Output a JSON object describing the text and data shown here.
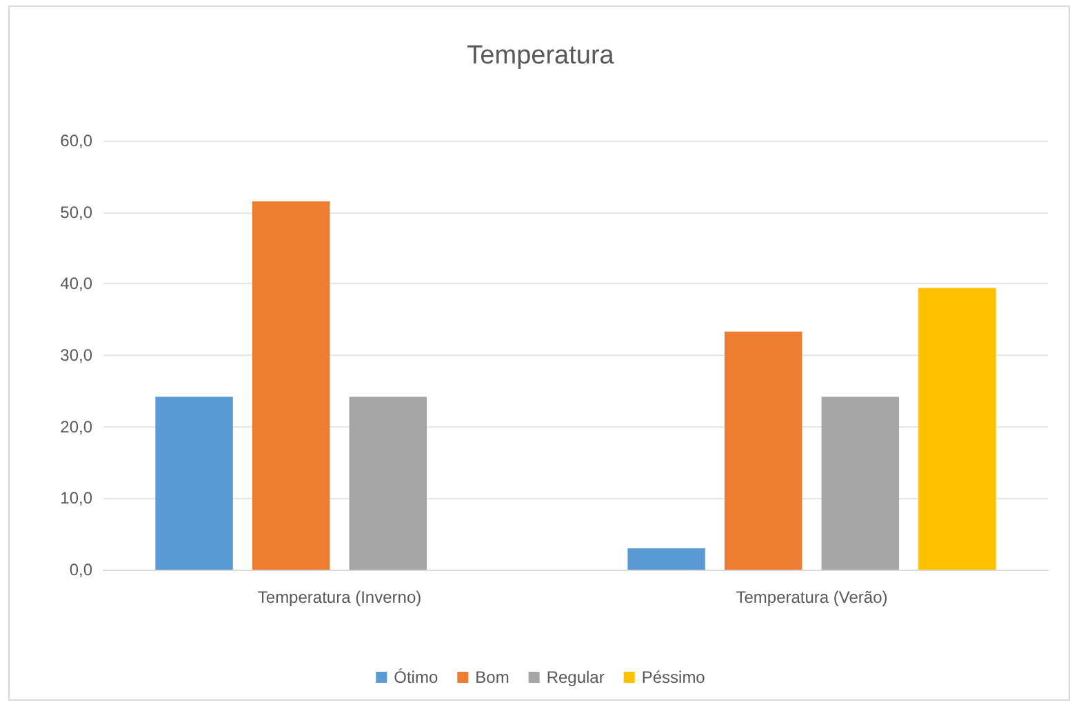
{
  "chart_data": {
    "type": "bar",
    "title": "Temperatura",
    "categories": [
      "Temperatura (Inverno)",
      "Temperatura (Verão)"
    ],
    "series": [
      {
        "name": "Ótimo",
        "color": "#5b9bd5",
        "values": [
          24.2,
          3.0
        ]
      },
      {
        "name": "Bom",
        "color": "#ed7d31",
        "values": [
          51.5,
          33.3
        ]
      },
      {
        "name": "Regular",
        "color": "#a5a5a5",
        "values": [
          24.2,
          24.2
        ]
      },
      {
        "name": "Péssimo",
        "color": "#ffc000",
        "values": [
          0,
          39.4
        ]
      }
    ],
    "ylim": [
      0,
      60
    ],
    "yticks": [
      {
        "value": 0,
        "label": "0,0"
      },
      {
        "value": 10,
        "label": "10,0"
      },
      {
        "value": 20,
        "label": "20,0"
      },
      {
        "value": 30,
        "label": "30,0"
      },
      {
        "value": 40,
        "label": "40,0"
      },
      {
        "value": 50,
        "label": "50,0"
      },
      {
        "value": 60,
        "label": "60,0"
      }
    ],
    "grid": true,
    "legend": "bottom"
  }
}
